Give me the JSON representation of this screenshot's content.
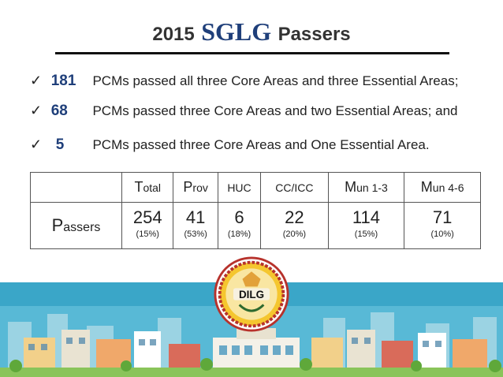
{
  "title": {
    "year": "2015",
    "brand": "SGLG",
    "suffix": "Passers"
  },
  "bullets": [
    {
      "number": "181",
      "text": "PCMs passed  all three Core Areas and  three Essential Areas;"
    },
    {
      "number": "68",
      "text": "PCMs passed three  Core Areas and two Essential Areas; and"
    },
    {
      "number": "5",
      "text": "PCMs passed three Core Areas and One Essential Area."
    }
  ],
  "table": {
    "headers": [
      {
        "cap": "T",
        "rest": "otal"
      },
      {
        "cap": "P",
        "rest": "rov"
      },
      {
        "cap": "",
        "rest": "HUC"
      },
      {
        "cap": "",
        "rest": "CC/ICC"
      },
      {
        "cap": "M",
        "rest": "un 1-3"
      },
      {
        "cap": "M",
        "rest": "un 4-6"
      }
    ],
    "row_label": {
      "cap": "P",
      "rest": "assers"
    },
    "values": [
      {
        "value": "254",
        "pct": "(15%)"
      },
      {
        "value": "41",
        "pct": "(53%)"
      },
      {
        "value": "6",
        "pct": "(18%)"
      },
      {
        "value": "22",
        "pct": "(20%)"
      },
      {
        "value": "114",
        "pct": "(15%)"
      },
      {
        "value": "71",
        "pct": "(10%)"
      }
    ]
  },
  "logo": {
    "text": "DILG"
  },
  "colors": {
    "accent": "#1f3f7a",
    "sky": "#3aa6c8",
    "ground": "#8ac45a"
  }
}
